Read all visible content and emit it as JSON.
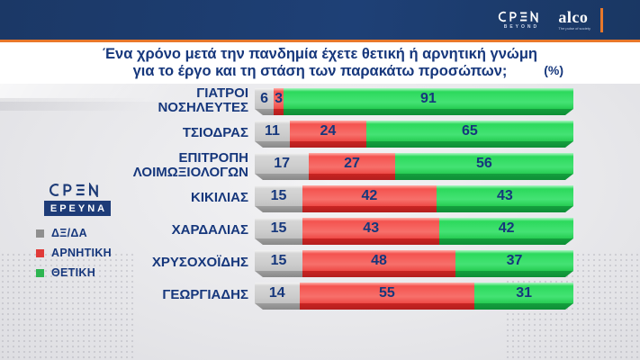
{
  "banner": {
    "open_logo": {
      "text": "OPEN",
      "sub": "BEYOND"
    },
    "alco_logo": {
      "text": "alco",
      "tagline": "The pulse of society"
    }
  },
  "header": {
    "title_line1": "Ένα χρόνο μετά την πανδημία έχετε θετική ή αρνητική γνώμη",
    "title_line2": "για το έργο και τη στάση των παρακάτω προσώπων;",
    "unit": "(%)"
  },
  "side": {
    "open_logo": "OPEN",
    "badge": "ΕΡΕΥΝΑ"
  },
  "colors": {
    "banner_blue": "#1d3a6b",
    "accent_orange": "#e8782a",
    "navy_text": "#16377c",
    "background_gray": "#e9e9eb",
    "bar_gray": "#c9c9c9",
    "bar_red": "#f25050",
    "bar_green": "#2ed55c"
  },
  "chart_data": {
    "type": "bar",
    "orientation": "horizontal",
    "stacked": true,
    "title": "Ένα χρόνο μετά την πανδημία έχετε θετική ή αρνητική γνώμη για το έργο και τη στάση των παρακάτω προσώπων;",
    "unit": "%",
    "xlim": [
      0,
      100
    ],
    "legend_position": "left",
    "categories": [
      "ΓΙΑΤΡΟΙ ΝΟΣΗΛΕΥΤΕΣ",
      "ΤΣΙΟΔΡΑΣ",
      "ΕΠΙΤΡΟΠΗ ΛΟΙΜΩΞΙΟΛΟΓΩΝ",
      "ΚΙΚΙΛΙΑΣ",
      "ΧΑΡΔΑΛΙΑΣ",
      "ΧΡΥΣΟΧΟΪΔΗΣ",
      "ΓΕΩΡΓΙΑΔΗΣ"
    ],
    "category_lines": [
      [
        "ΓΙΑΤΡΟΙ",
        "ΝΟΣΗΛΕΥΤΕΣ"
      ],
      [
        "ΤΣΙΟΔΡΑΣ"
      ],
      [
        "ΕΠΙΤΡΟΠΗ",
        "ΛΟΙΜΩΞΙΟΛΟΓΩΝ"
      ],
      [
        "ΚΙΚΙΛΙΑΣ"
      ],
      [
        "ΧΑΡΔΑΛΙΑΣ"
      ],
      [
        "ΧΡΥΣΟΧΟΪΔΗΣ"
      ],
      [
        "ΓΕΩΡΓΙΑΔΗΣ"
      ]
    ],
    "series": [
      {
        "name": "ΔΞ/ΔΑ",
        "color": "#c9c9c9",
        "values": [
          6,
          11,
          17,
          15,
          15,
          15,
          14
        ]
      },
      {
        "name": "ΑΡΝΗΤΙΚΗ",
        "color": "#f25050",
        "values": [
          3,
          24,
          27,
          42,
          43,
          48,
          55
        ]
      },
      {
        "name": "ΘΕΤΙΚΗ",
        "color": "#2ed55c",
        "values": [
          91,
          65,
          56,
          43,
          42,
          37,
          31
        ]
      }
    ]
  }
}
